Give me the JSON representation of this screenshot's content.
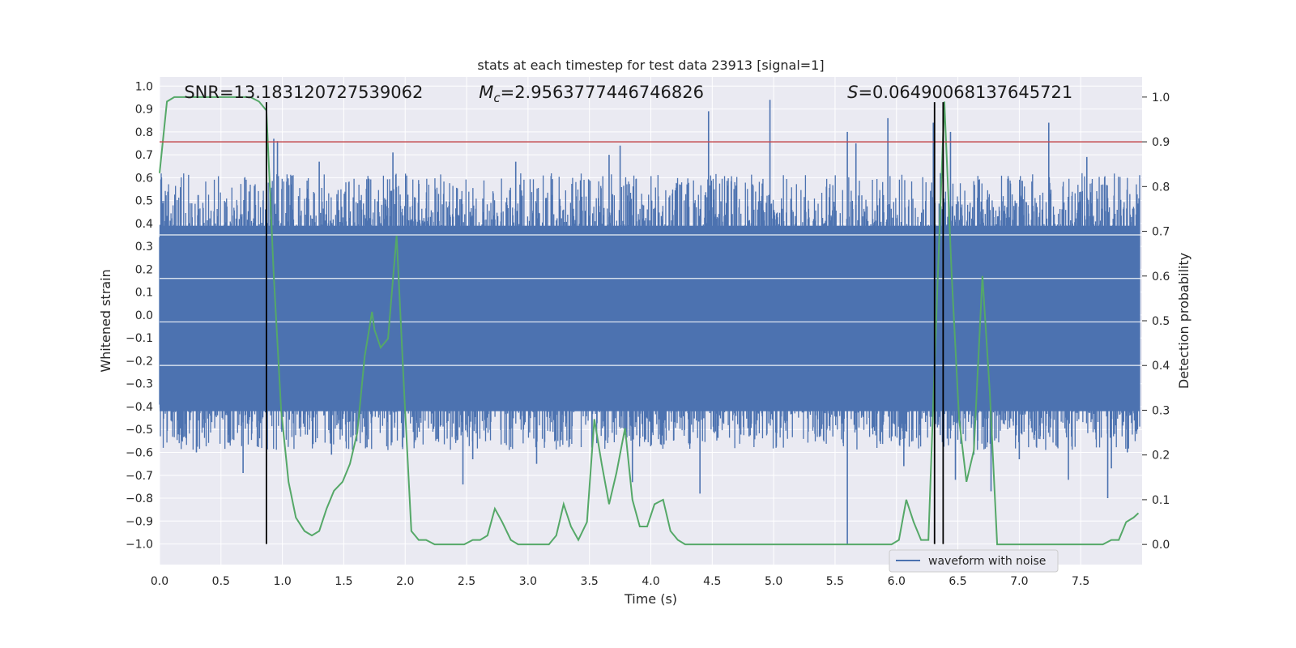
{
  "chart_data": {
    "type": "line",
    "title": "stats at each timestep for test data 23913 [signal=1]",
    "xlabel": "Time (s)",
    "ylabel": "Whitened strain",
    "y2label": "Detection probability",
    "xlim": [
      0.0,
      8.0
    ],
    "ylim": [
      -1.09,
      1.04
    ],
    "y2lim": [
      -0.045,
      1.045
    ],
    "xticks": [
      0.0,
      0.5,
      1.0,
      1.5,
      2.0,
      2.5,
      3.0,
      3.5,
      4.0,
      4.5,
      5.0,
      5.5,
      6.0,
      6.5,
      7.0,
      7.5
    ],
    "xtick_labels": [
      "0.0",
      "0.5",
      "1.0",
      "1.5",
      "2.0",
      "2.5",
      "3.0",
      "3.5",
      "4.0",
      "4.5",
      "5.0",
      "5.5",
      "6.0",
      "6.5",
      "7.0",
      "7.5"
    ],
    "yticks": [
      1.0,
      0.9,
      0.8,
      0.7,
      0.6,
      0.5,
      0.4,
      0.3,
      0.2,
      0.1,
      0.0,
      -0.1,
      -0.2,
      -0.3,
      -0.4,
      -0.5,
      -0.6,
      -0.7,
      -0.8,
      -0.9,
      -1.0
    ],
    "ytick_labels": [
      "1.0",
      "0.9",
      "0.8",
      "0.7",
      "0.6",
      "0.5",
      "0.4",
      "0.3",
      "0.2",
      "0.1",
      "0.0",
      "−0.1",
      "−0.2",
      "−0.3",
      "−0.4",
      "−0.5",
      "−0.6",
      "−0.7",
      "−0.8",
      "−0.9",
      "−1.0"
    ],
    "y2ticks": [
      1.0,
      0.9,
      0.8,
      0.7,
      0.6,
      0.5,
      0.4,
      0.3,
      0.2,
      0.1,
      0.0
    ],
    "y2tick_labels": [
      "1.0",
      "0.9",
      "0.8",
      "0.7",
      "0.6",
      "0.5",
      "0.4",
      "0.3",
      "0.2",
      "0.1",
      "0.0"
    ],
    "annotations": [
      {
        "text": "SNR=13.183120727539062",
        "x": 0.2,
        "y": 0.9
      },
      {
        "text": "M",
        "sub": "c",
        "rest": "=2.9563777446746826",
        "x": 2.6,
        "y": 0.9
      },
      {
        "text": "S",
        "rest": "=0.06490068137645721",
        "x": 5.6,
        "y": 0.9
      }
    ],
    "legend": {
      "entries": [
        "waveform with noise"
      ],
      "placement": "lower-right"
    },
    "colors": {
      "waveform": "#4c72b0",
      "probability": "#55a868",
      "threshold": "#c44e52",
      "vlines": "#000000",
      "background": "#eaeaf2",
      "grid": "#ffffff"
    },
    "threshold_y2": 0.9,
    "vertical_lines_x": [
      0.87,
      6.31,
      6.38
    ],
    "waveform": {
      "name": "waveform with noise",
      "samples": 2400,
      "band": [
        -0.42,
        0.39
      ],
      "seed": 23913,
      "spikes": [
        {
          "x": 0.93,
          "y": 0.77
        },
        {
          "x": 0.87,
          "y": -0.66
        },
        {
          "x": 0.96,
          "y": 0.76
        },
        {
          "x": 1.9,
          "y": 0.71
        },
        {
          "x": 1.3,
          "y": 0.67
        },
        {
          "x": 0.68,
          "y": -0.69
        },
        {
          "x": 3.85,
          "y": -0.73
        },
        {
          "x": 3.07,
          "y": -0.65
        },
        {
          "x": 4.4,
          "y": -0.78
        },
        {
          "x": 4.47,
          "y": 0.89
        },
        {
          "x": 4.97,
          "y": 0.94
        },
        {
          "x": 4.8,
          "y": -0.53
        },
        {
          "x": 5.6,
          "y": -1.0
        },
        {
          "x": 5.6,
          "y": 0.8
        },
        {
          "x": 5.67,
          "y": 0.75
        },
        {
          "x": 5.93,
          "y": 0.86
        },
        {
          "x": 6.3,
          "y": 0.84
        },
        {
          "x": 6.06,
          "y": -0.66
        },
        {
          "x": 6.44,
          "y": 0.8
        },
        {
          "x": 6.48,
          "y": -0.72
        },
        {
          "x": 6.63,
          "y": -0.61
        },
        {
          "x": 6.77,
          "y": -0.77
        },
        {
          "x": 7.24,
          "y": 0.84
        },
        {
          "x": 7.0,
          "y": -0.63
        },
        {
          "x": 7.4,
          "y": -0.72
        },
        {
          "x": 7.72,
          "y": -0.8
        },
        {
          "x": 7.75,
          "y": -0.67
        },
        {
          "x": 7.88,
          "y": -0.6
        },
        {
          "x": 2.47,
          "y": -0.74
        },
        {
          "x": 2.55,
          "y": -0.63
        },
        {
          "x": 3.75,
          "y": 0.74
        },
        {
          "x": 3.66,
          "y": 0.7
        },
        {
          "x": 2.9,
          "y": 0.67
        },
        {
          "x": 1.4,
          "y": -0.61
        },
        {
          "x": 0.3,
          "y": -0.6
        },
        {
          "x": 7.55,
          "y": 0.69
        }
      ]
    },
    "series": [
      {
        "name": "",
        "axis": "right",
        "x": [
          0.0,
          0.06,
          0.12,
          0.19,
          0.25,
          0.31,
          0.37,
          0.43,
          0.5,
          0.56,
          0.62,
          0.68,
          0.74,
          0.81,
          0.87,
          0.93,
          0.99,
          1.05,
          1.11,
          1.18,
          1.24,
          1.3,
          1.36,
          1.42,
          1.49,
          1.55,
          1.61,
          1.67,
          1.73,
          1.75,
          1.8,
          1.86,
          1.93,
          1.99,
          2.05,
          2.11,
          2.17,
          2.24,
          2.3,
          2.36,
          2.42,
          2.48,
          2.55,
          2.61,
          2.67,
          2.73,
          2.79,
          2.86,
          2.92,
          2.98,
          3.04,
          3.1,
          3.17,
          3.23,
          3.29,
          3.35,
          3.41,
          3.48,
          3.54,
          3.6,
          3.66,
          3.72,
          3.79,
          3.85,
          3.91,
          3.97,
          4.03,
          4.1,
          4.16,
          4.22,
          4.28,
          4.34,
          4.41,
          4.47,
          4.53,
          4.59,
          4.65,
          4.72,
          4.78,
          4.84,
          4.9,
          4.96,
          5.03,
          5.09,
          5.15,
          5.21,
          5.27,
          5.34,
          5.4,
          5.46,
          5.52,
          5.58,
          5.65,
          5.71,
          5.77,
          5.83,
          5.89,
          5.96,
          6.02,
          6.08,
          6.14,
          6.2,
          6.26,
          6.33,
          6.39,
          6.45,
          6.51,
          6.57,
          6.63,
          6.7,
          6.76,
          6.82,
          6.88,
          6.94,
          7.0,
          7.07,
          7.13,
          7.19,
          7.25,
          7.31,
          7.38,
          7.44,
          7.5,
          7.56,
          7.62,
          7.68,
          7.75,
          7.81,
          7.87,
          7.93,
          7.97
        ],
        "y": [
          0.83,
          0.99,
          1.0,
          1.0,
          1.0,
          1.0,
          1.0,
          1.0,
          1.0,
          1.0,
          1.0,
          1.0,
          1.0,
          0.99,
          0.97,
          0.6,
          0.3,
          0.14,
          0.06,
          0.03,
          0.02,
          0.03,
          0.08,
          0.12,
          0.14,
          0.18,
          0.25,
          0.42,
          0.52,
          0.48,
          0.44,
          0.46,
          0.69,
          0.35,
          0.03,
          0.01,
          0.01,
          0.0,
          0.0,
          0.0,
          0.0,
          0.0,
          0.01,
          0.01,
          0.02,
          0.08,
          0.05,
          0.01,
          0.0,
          0.0,
          0.0,
          0.0,
          0.0,
          0.02,
          0.09,
          0.04,
          0.01,
          0.05,
          0.28,
          0.18,
          0.09,
          0.16,
          0.26,
          0.1,
          0.04,
          0.04,
          0.09,
          0.1,
          0.03,
          0.01,
          0.0,
          0.0,
          0.0,
          0.0,
          0.0,
          0.0,
          0.0,
          0.0,
          0.0,
          0.0,
          0.0,
          0.0,
          0.0,
          0.0,
          0.0,
          0.0,
          0.0,
          0.0,
          0.0,
          0.0,
          0.0,
          0.0,
          0.0,
          0.0,
          0.0,
          0.0,
          0.0,
          0.0,
          0.01,
          0.1,
          0.05,
          0.01,
          0.01,
          0.55,
          0.99,
          0.6,
          0.28,
          0.14,
          0.21,
          0.6,
          0.34,
          0.0,
          0.0,
          0.0,
          0.0,
          0.0,
          0.0,
          0.0,
          0.0,
          0.0,
          0.0,
          0.0,
          0.0,
          0.0,
          0.0,
          0.0,
          0.01,
          0.01,
          0.05,
          0.06,
          0.07
        ]
      }
    ]
  }
}
